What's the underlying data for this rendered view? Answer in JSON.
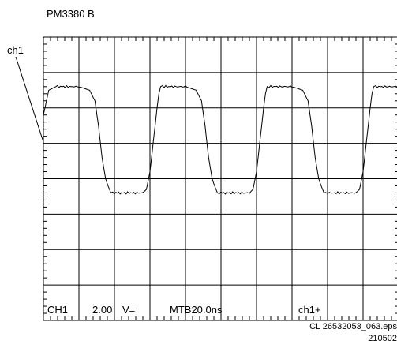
{
  "header": {
    "model": "PM3380 B"
  },
  "channel_marker": "ch1",
  "readout": {
    "channel": "CH1",
    "volts": "2.00",
    "coupling": "V=",
    "timebase": "MTB20.0ns",
    "trigger": "ch1+"
  },
  "footer": {
    "file": "CL 26532053_063.eps",
    "code": "210502"
  },
  "chart_data": {
    "type": "line",
    "grid": true,
    "divisions": {
      "x": 10,
      "y": 8
    },
    "minor_ticks_per_division": 5,
    "series": [
      {
        "x": [
          0,
          0.15,
          0.35,
          1.0,
          1.3,
          1.45,
          1.55,
          1.65,
          1.75,
          1.82,
          1.9,
          2.0,
          2.2,
          2.5,
          2.8,
          2.9,
          3.0,
          3.1,
          3.2,
          3.25,
          3.3,
          3.4,
          4.0,
          4.3,
          4.45,
          4.55,
          4.65,
          4.75,
          4.82,
          4.9,
          5.0,
          5.2,
          5.5,
          5.8,
          5.9,
          6.0,
          6.1,
          6.2,
          6.25,
          6.3,
          6.4,
          7.0,
          7.3,
          7.45,
          7.55,
          7.65,
          7.75,
          7.82,
          7.9,
          8.0,
          8.2,
          8.5,
          8.8,
          8.9,
          9.0,
          9.1,
          9.2,
          9.25,
          9.3,
          9.4,
          10.0
        ],
        "y": [
          5.8,
          6.5,
          6.6,
          6.6,
          6.5,
          6.2,
          5.5,
          4.6,
          4.0,
          3.8,
          3.6,
          3.6,
          3.6,
          3.6,
          3.6,
          3.7,
          4.2,
          5.1,
          6.0,
          6.4,
          6.6,
          6.6,
          6.6,
          6.5,
          6.2,
          5.5,
          4.6,
          4.0,
          3.8,
          3.6,
          3.6,
          3.6,
          3.6,
          3.6,
          3.7,
          4.2,
          5.1,
          6.0,
          6.4,
          6.6,
          6.6,
          6.6,
          6.5,
          6.2,
          5.5,
          4.6,
          4.0,
          3.8,
          3.6,
          3.6,
          3.6,
          3.6,
          3.6,
          3.7,
          4.2,
          5.1,
          6.0,
          6.4,
          6.6,
          6.6,
          6.6
        ]
      }
    ]
  }
}
